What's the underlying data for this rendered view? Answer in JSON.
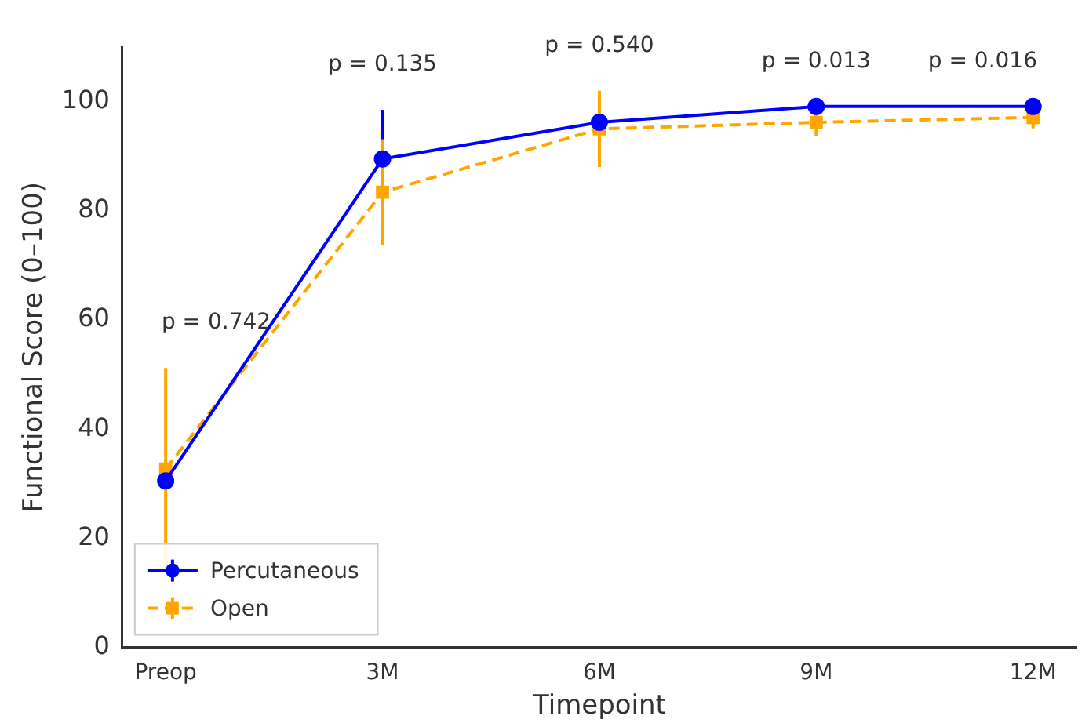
{
  "chart_data": {
    "type": "line",
    "xlabel": "Timepoint",
    "ylabel": "Functional Score (0–100)",
    "categories": [
      "Preop",
      "3M",
      "6M",
      "9M",
      "12M"
    ],
    "series": [
      {
        "name": "Percutaneous",
        "color": "#0000ff",
        "marker": "circle",
        "line_style": "solid",
        "values": [
          30.5,
          89.5,
          96.2,
          99.1,
          99.1
        ],
        "errors": [
          null,
          9,
          null,
          null,
          null
        ]
      },
      {
        "name": "Open",
        "color": "#ffa500",
        "marker": "square",
        "line_style": "dashed",
        "values": [
          32.7,
          83.4,
          95,
          96.2,
          97.1
        ],
        "errors": [
          18.5,
          9.7,
          7,
          2.5,
          2
        ]
      }
    ],
    "ylim": [
      0,
      110
    ],
    "yticks": [
      0,
      20,
      40,
      60,
      80,
      100
    ],
    "grid": false,
    "legend": "bottom left",
    "annotations": [
      "p = 0.742",
      "p = 0.135",
      "p = 0.540",
      "p = 0.013",
      "p = 0.016"
    ]
  }
}
